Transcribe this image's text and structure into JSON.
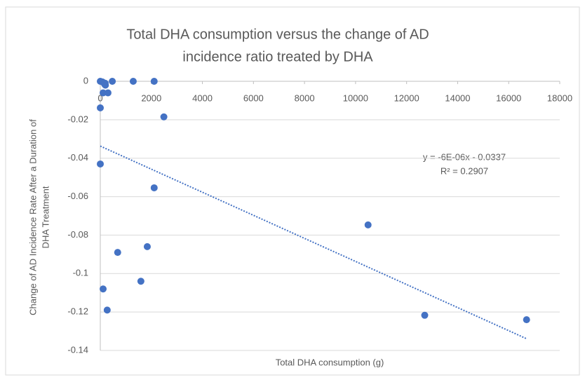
{
  "chart_data": {
    "type": "scatter",
    "title": [
      "Total DHA consumption versus the change of AD",
      "incidence ratio treated by DHA"
    ],
    "x_label": "Total DHA consumption (g)",
    "y_label": [
      "Change of AD Incidence Rate After a Duration of",
      "DHA Treatment"
    ],
    "color": "#4472c4",
    "x": [
      0,
      80,
      190,
      200,
      110,
      170,
      300,
      470,
      1290,
      2110,
      2490,
      0,
      0,
      2110,
      680,
      1840,
      1590,
      110,
      270,
      10490,
      12710,
      16700
    ],
    "values": [
      0,
      -0.0003,
      -0.001,
      -0.002,
      -0.006,
      -0.0015,
      -0.006,
      0,
      0,
      0,
      -0.0185,
      -0.0138,
      -0.043,
      -0.0554,
      -0.089,
      -0.086,
      -0.104,
      -0.108,
      -0.119,
      -0.0747,
      -0.1217,
      -0.124
    ],
    "xlim": [
      0,
      18000
    ],
    "xticks": [
      0,
      2000,
      4000,
      6000,
      8000,
      10000,
      12000,
      14000,
      16000,
      18000
    ],
    "ylim": [
      -0.14,
      0
    ],
    "yticks": [
      0,
      -0.02,
      -0.04,
      -0.06,
      -0.08,
      -0.1,
      -0.12,
      -0.14
    ],
    "grid": true,
    "trendline": {
      "slope": -6e-06,
      "intercept": -0.0337,
      "color": "#4472c4"
    },
    "annotations": [
      "y = -6E-06x - 0.0337",
      "R² = 0.2907"
    ]
  }
}
